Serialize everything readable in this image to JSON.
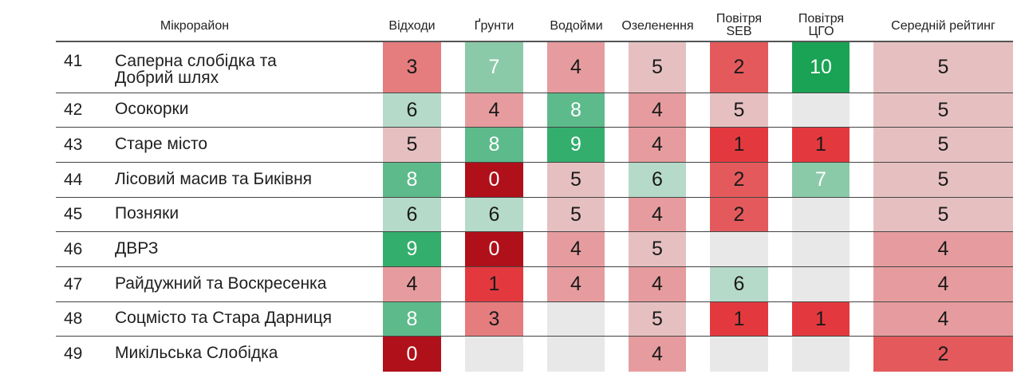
{
  "headers": {
    "district": "Мікрорайон",
    "waste": "Відходи",
    "soil": "Ґрунти",
    "water": "Водойми",
    "greenery": "Озеленення",
    "air_seb_line1": "Повітря",
    "air_seb_line2": "SEB",
    "air_cgo_line1": "Повітря",
    "air_cgo_line2": "ЦГО",
    "average": "Середній рейтинг"
  },
  "colors": {
    "0": "#b0101a",
    "1": "#e3393e",
    "2": "#e45a5c",
    "3": "#e57c7e",
    "4": "#e69c9e",
    "5": "#e6c0c1",
    "6": "#b6dac9",
    "7": "#8bcaa9",
    "8": "#5dba8b",
    "9": "#33ae6d",
    "10": "#1aa354",
    "empty": "#e8e8e8"
  },
  "rows": [
    {
      "rank": "41",
      "name_line1": "Саперна слобідка та",
      "name_line2": "Добрий шлях",
      "waste": "3",
      "soil": "7",
      "water": "4",
      "greenery": "5",
      "air_seb": "2",
      "air_cgo": "10",
      "average": "5"
    },
    {
      "rank": "42",
      "name_line1": "Осокорки",
      "name_line2": "",
      "waste": "6",
      "soil": "4",
      "water": "8",
      "greenery": "4",
      "air_seb": "5",
      "air_cgo": "",
      "average": "5"
    },
    {
      "rank": "43",
      "name_line1": "Старе місто",
      "name_line2": "",
      "waste": "5",
      "soil": "8",
      "water": "9",
      "greenery": "4",
      "air_seb": "1",
      "air_cgo": "1",
      "average": "5"
    },
    {
      "rank": "44",
      "name_line1": "Лісовий масив та Биківня",
      "name_line2": "",
      "waste": "8",
      "soil": "0",
      "water": "5",
      "greenery": "6",
      "air_seb": "2",
      "air_cgo": "7",
      "average": "5"
    },
    {
      "rank": "45",
      "name_line1": "Позняки",
      "name_line2": "",
      "waste": "6",
      "soil": "6",
      "water": "5",
      "greenery": "4",
      "air_seb": "2",
      "air_cgo": "",
      "average": "5"
    },
    {
      "rank": "46",
      "name_line1": "ДВРЗ",
      "name_line2": "",
      "waste": "9",
      "soil": "0",
      "water": "4",
      "greenery": "5",
      "air_seb": "",
      "air_cgo": "",
      "average": "4"
    },
    {
      "rank": "47",
      "name_line1": "Райдужний та Воскресенка",
      "name_line2": "",
      "waste": "4",
      "soil": "1",
      "water": "4",
      "greenery": "4",
      "air_seb": "6",
      "air_cgo": "",
      "average": "4"
    },
    {
      "rank": "48",
      "name_line1": "Соцмісто та Стара Дарниця",
      "name_line2": "",
      "waste": "8",
      "soil": "3",
      "water": "",
      "greenery": "5",
      "air_seb": "1",
      "air_cgo": "1",
      "average": "4"
    },
    {
      "rank": "49",
      "name_line1": "Микільська Слобідка",
      "name_line2": "",
      "waste": "0",
      "soil": "",
      "water": "",
      "greenery": "4",
      "air_seb": "",
      "air_cgo": "",
      "average": "2"
    }
  ]
}
